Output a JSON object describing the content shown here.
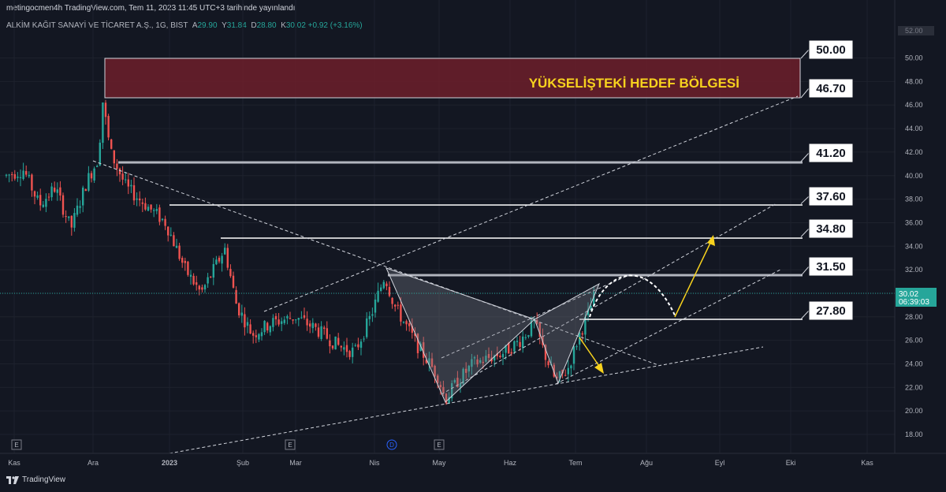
{
  "header": {
    "published": "metingocmen4h TradingView.com, Tem 11, 2023 11:45 UTC+3 tarihinde yayınlandı",
    "symbol": "ALKİM KAĞIT SANAYİ VE TİCARET A.Ş., 1G, BIST",
    "ohlc": [
      {
        "k": "A",
        "v": "29.90"
      },
      {
        "k": "Y",
        "v": "31.84"
      },
      {
        "k": "D",
        "v": "28.80"
      },
      {
        "k": "K",
        "v": "30.02"
      }
    ],
    "change": "+0.92 (+3.16%)"
  },
  "footer": {
    "brand": "TradingView"
  },
  "colors": {
    "up": "#26a69a",
    "down": "#ef5350",
    "zone": "#6d1f2a",
    "zone_text": "#f7d21e",
    "bg": "#131722"
  },
  "chart_data": {
    "type": "candlestick",
    "zone_label": "YÜKSELİŞTEKİ HEDEF BÖLGESİ",
    "x_ticks": [
      "Kas",
      "Ara",
      "2023",
      "Şub",
      "Mar",
      "Nis",
      "May",
      "Haz",
      "Tem",
      "Ağu",
      "Eyl",
      "Eki",
      "Kas"
    ],
    "y_ticks": [
      "18.00",
      "20.00",
      "22.00",
      "24.00",
      "26.00",
      "28.00",
      "30.00",
      "32.00",
      "34.00",
      "36.00",
      "38.00",
      "40.00",
      "42.00",
      "44.00",
      "46.00",
      "48.00",
      "50.00"
    ],
    "ylim": [
      17,
      53
    ],
    "price_label": "30.02",
    "countdown": "06:39:03",
    "levels": [
      "50.00",
      "46.70",
      "41.20",
      "37.60",
      "34.80",
      "31.50",
      "27.80"
    ],
    "zone": {
      "low": 46.7,
      "high": 50.0
    },
    "top_tick": "52.00",
    "event_markers": [
      "E",
      "E",
      "D",
      "E"
    ]
  }
}
